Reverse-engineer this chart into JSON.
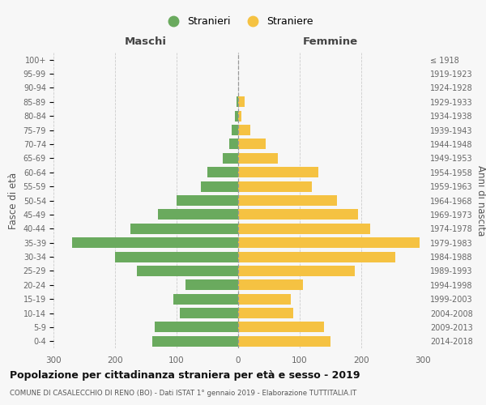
{
  "age_groups": [
    "0-4",
    "5-9",
    "10-14",
    "15-19",
    "20-24",
    "25-29",
    "30-34",
    "35-39",
    "40-44",
    "45-49",
    "50-54",
    "55-59",
    "60-64",
    "65-69",
    "70-74",
    "75-79",
    "80-84",
    "85-89",
    "90-94",
    "95-99",
    "100+"
  ],
  "birth_years": [
    "2014-2018",
    "2009-2013",
    "2004-2008",
    "1999-2003",
    "1994-1998",
    "1989-1993",
    "1984-1988",
    "1979-1983",
    "1974-1978",
    "1969-1973",
    "1964-1968",
    "1959-1963",
    "1954-1958",
    "1949-1953",
    "1944-1948",
    "1939-1943",
    "1934-1938",
    "1929-1933",
    "1924-1928",
    "1919-1923",
    "≤ 1918"
  ],
  "males": [
    140,
    135,
    95,
    105,
    85,
    165,
    200,
    270,
    175,
    130,
    100,
    60,
    50,
    25,
    15,
    10,
    5,
    2,
    0,
    0,
    0
  ],
  "females": [
    150,
    140,
    90,
    85,
    105,
    190,
    255,
    295,
    215,
    195,
    160,
    120,
    130,
    65,
    45,
    20,
    5,
    10,
    0,
    0,
    0
  ],
  "male_color": "#6aaa5e",
  "female_color": "#f5c242",
  "background_color": "#f7f7f7",
  "grid_color": "#cccccc",
  "title": "Popolazione per cittadinanza straniera per età e sesso - 2019",
  "subtitle": "COMUNE DI CASALECCHIO DI RENO (BO) - Dati ISTAT 1° gennaio 2019 - Elaborazione TUTTITALIA.IT",
  "ylabel_left": "Fasce di età",
  "ylabel_right": "Anni di nascita",
  "xlabel_left": "Maschi",
  "xlabel_top_right": "Femmine",
  "legend_male": "Stranieri",
  "legend_female": "Straniere",
  "xlim": 300
}
